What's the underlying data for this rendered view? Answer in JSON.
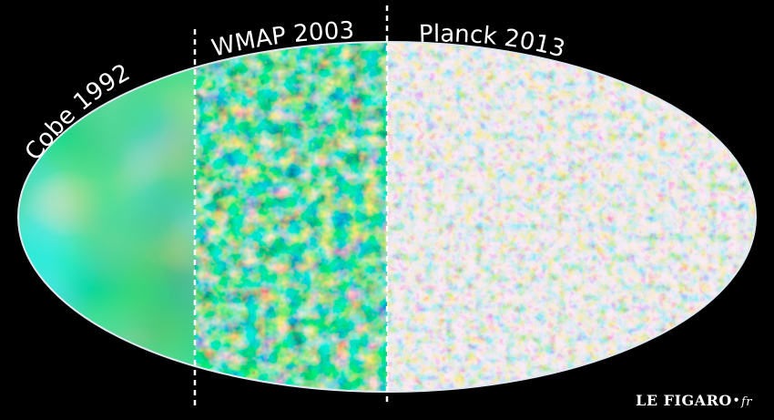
{
  "labels": {
    "cobe": "Cobe 1992",
    "wmap": "WMAP 2003",
    "planck": "Planck 2013"
  },
  "logo": {
    "name": "LE FIGARO",
    "dot": "•",
    "suffix": "fr"
  },
  "colors": {
    "background": "#000000",
    "divider": "#ffffff",
    "cobe_base": "#2fb35a",
    "wmap_base": "#2a9a86",
    "planck_base": "#a9c6dd",
    "hot": "#d8641e",
    "cold": "#1d3fc9"
  }
}
